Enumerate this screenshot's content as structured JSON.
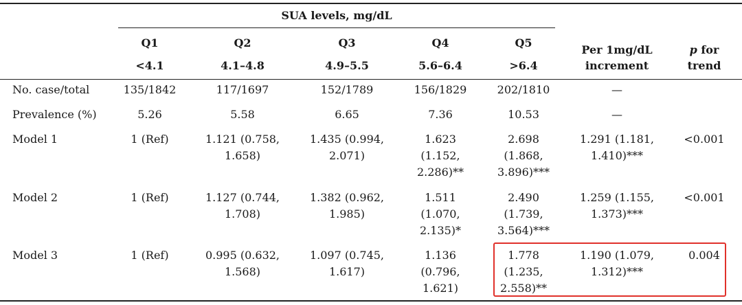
{
  "header": {
    "group_label": "SUA levels, mg/dL",
    "columns": [
      {
        "q": "Q1",
        "range": "<4.1"
      },
      {
        "q": "Q2",
        "range": "4.1–4.8"
      },
      {
        "q": "Q3",
        "range": "4.9–5.5"
      },
      {
        "q": "Q4",
        "range": "5.6–6.4"
      },
      {
        "q": "Q5",
        "range": ">6.4"
      }
    ],
    "per_increment_line1": "Per 1mg/dL",
    "per_increment_line2": "increment",
    "p_trend_line1_italic": "p",
    "p_trend_line1_rest": " for",
    "p_trend_line2": "trend"
  },
  "rows": [
    {
      "label": "No. case/total",
      "cells": [
        "135/1842",
        "117/1697",
        "152/1789",
        "156/1829",
        "202/1810"
      ],
      "per": "—",
      "p": ""
    },
    {
      "label": "Prevalence (%)",
      "cells": [
        "5.26",
        "5.58",
        "6.65",
        "7.36",
        "10.53"
      ],
      "per": "—",
      "p": ""
    },
    {
      "label": "Model 1",
      "cells": [
        [
          "1 (Ref)"
        ],
        [
          "1.121 (0.758,",
          "1.658)"
        ],
        [
          "1.435 (0.994,",
          "2.071)"
        ],
        [
          "1.623",
          "(1.152,",
          "2.286)**"
        ],
        [
          "2.698",
          "(1.868,",
          "3.896)***"
        ]
      ],
      "per": [
        "1.291 (1.181,",
        "1.410)***"
      ],
      "p": "<0.001"
    },
    {
      "label": "Model 2",
      "cells": [
        [
          "1 (Ref)"
        ],
        [
          "1.127 (0.744,",
          "1.708)"
        ],
        [
          "1.382 (0.962,",
          "1.985)"
        ],
        [
          "1.511",
          "(1.070,",
          "2.135)*"
        ],
        [
          "2.490",
          "(1.739,",
          "3.564)***"
        ]
      ],
      "per": [
        "1.259 (1.155,",
        "1.373)***"
      ],
      "p": "<0.001"
    },
    {
      "label": "Model 3",
      "cells": [
        [
          "1 (Ref)"
        ],
        [
          "0.995 (0.632,",
          "1.568)"
        ],
        [
          "1.097 (0.745,",
          "1.617)"
        ],
        [
          "1.136",
          "(0.796,",
          "1.621)"
        ],
        [
          "1.778",
          "(1.235,",
          "2.558)**"
        ]
      ],
      "per": [
        "1.190 (1.079,",
        "1.312)***"
      ],
      "p": "0.004"
    }
  ],
  "highlight_color": "#e0302a"
}
